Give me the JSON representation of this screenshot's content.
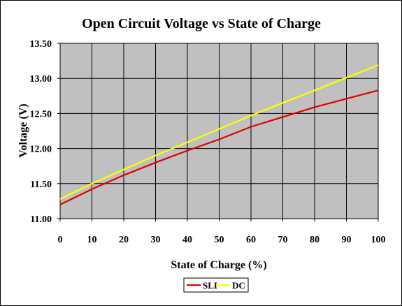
{
  "chart_data": {
    "type": "line",
    "title": "Open Circuit Voltage vs State of Charge",
    "xlabel": "State of Charge (%)",
    "ylabel": "Voltage (V)",
    "xlim": [
      0,
      100
    ],
    "ylim": [
      11.0,
      13.5
    ],
    "x_ticks": [
      "0",
      "10",
      "20",
      "30",
      "40",
      "50",
      "60",
      "70",
      "80",
      "90",
      "100"
    ],
    "y_ticks": [
      "11.00",
      "11.50",
      "12.00",
      "12.50",
      "13.00",
      "13.50"
    ],
    "grid": true,
    "legend_position": "bottom-center",
    "plot_background": "#c0c0c0",
    "x": [
      0,
      10,
      20,
      30,
      40,
      50,
      60,
      70,
      80,
      90,
      100
    ],
    "series": [
      {
        "name": "SLI",
        "color": "#e00000",
        "values": [
          11.2,
          11.42,
          11.62,
          11.8,
          11.97,
          12.13,
          12.31,
          12.45,
          12.59,
          12.71,
          12.83
        ]
      },
      {
        "name": "DC",
        "color": "#ffff00",
        "values": [
          11.28,
          11.5,
          11.7,
          11.9,
          12.09,
          12.28,
          12.47,
          12.65,
          12.83,
          13.01,
          13.19
        ]
      }
    ]
  }
}
